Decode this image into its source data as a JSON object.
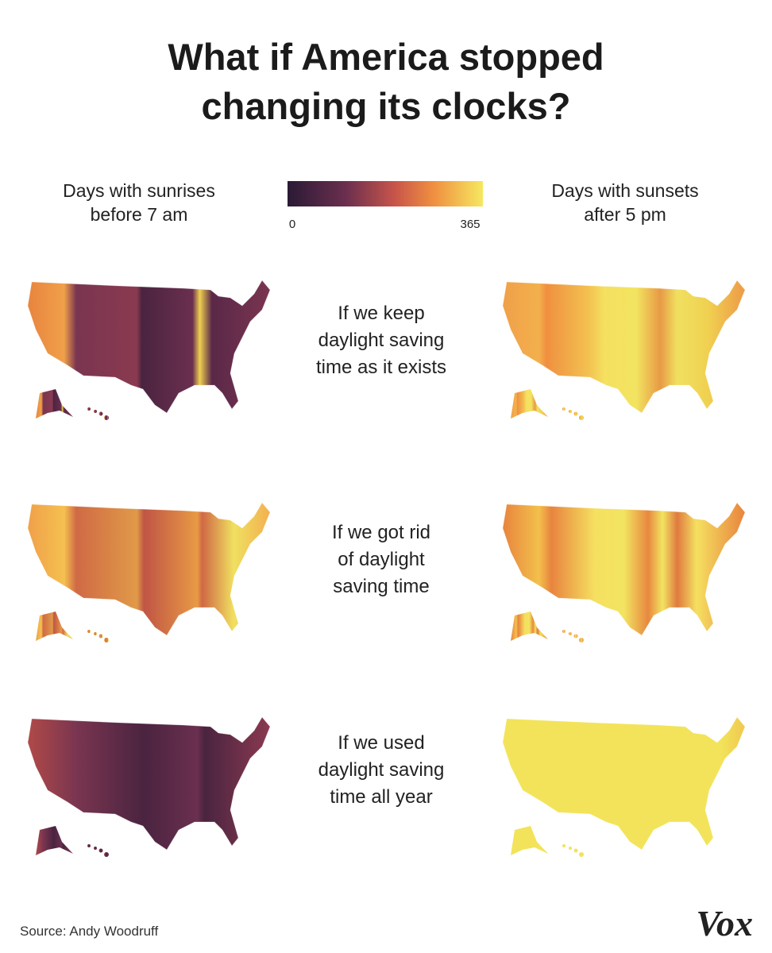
{
  "header": {
    "title_lines": [
      "What if America stopped",
      "changing its clocks?"
    ]
  },
  "legend": {
    "left_label": [
      "Days with sunrises",
      "before 7 am"
    ],
    "right_label": [
      "Days with sunsets",
      "after 5 pm"
    ],
    "scale": {
      "min": 0,
      "max": 365
    }
  },
  "rows": [
    {
      "caption": [
        "If we keep",
        "daylight saving",
        "time as it exists"
      ]
    },
    {
      "caption": [
        "If we got rid",
        "of daylight",
        "saving time"
      ]
    },
    {
      "caption": [
        "If we used",
        "daylight saving",
        "time all year"
      ]
    }
  ],
  "footer": {
    "source": "Source: Andy Woodruff",
    "brand": "Vox"
  }
}
